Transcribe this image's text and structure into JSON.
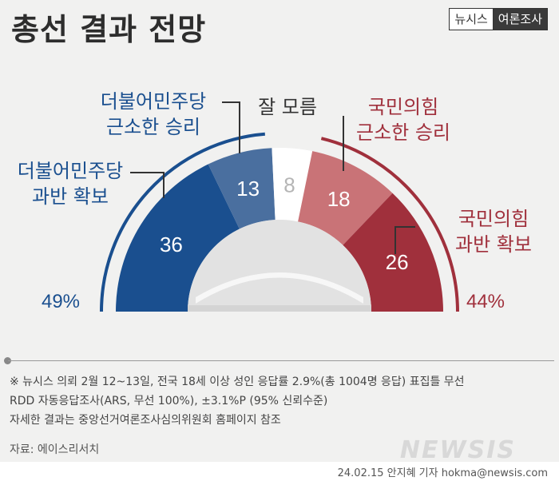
{
  "header": {
    "title": "총선 결과 전망",
    "brand": "뉴시스",
    "brand_tag": "여론조사"
  },
  "chart_data": {
    "type": "pie",
    "style": "semicircle",
    "categories": [
      "더불어민주당 과반 확보",
      "더불어민주당 근소한 승리",
      "잘 모름",
      "국민의힘 근소한 승리",
      "국민의힘 과반 확보"
    ],
    "values": [
      36,
      13,
      8,
      18,
      26
    ],
    "colors": [
      "#1a4f8f",
      "#4a6f9f",
      "#ffffff",
      "#c97377",
      "#a0303c"
    ],
    "totals": {
      "left": "49%",
      "right": "44%"
    }
  },
  "labels": {
    "dem_major": [
      "더불어민주당",
      "과반 확보"
    ],
    "dem_minor": [
      "더불어민주당",
      "근소한 승리"
    ],
    "unknown": [
      "잘 모름"
    ],
    "ppp_minor": [
      "국민의힘",
      "근소한 승리"
    ],
    "ppp_major": [
      "국민의힘",
      "과반 확보"
    ]
  },
  "notes": [
    "※ 뉴시스 의뢰 2월 12~13일, 전국 18세 이상 성인 응답률 2.9%(총 1004명 응답) 표집틀 무선",
    "RDD 자동응답조사(ARS, 무선 100%), ±3.1%P (95% 신뢰수준)",
    "자세한 결과는 중앙선거여론조사심의위원회 홈페이지 참조"
  ],
  "source": "자료: 에이스리서치",
  "credit": "24.02.15 안지혜 기자 hokma@newsis.com",
  "watermark": "NEWSIS"
}
